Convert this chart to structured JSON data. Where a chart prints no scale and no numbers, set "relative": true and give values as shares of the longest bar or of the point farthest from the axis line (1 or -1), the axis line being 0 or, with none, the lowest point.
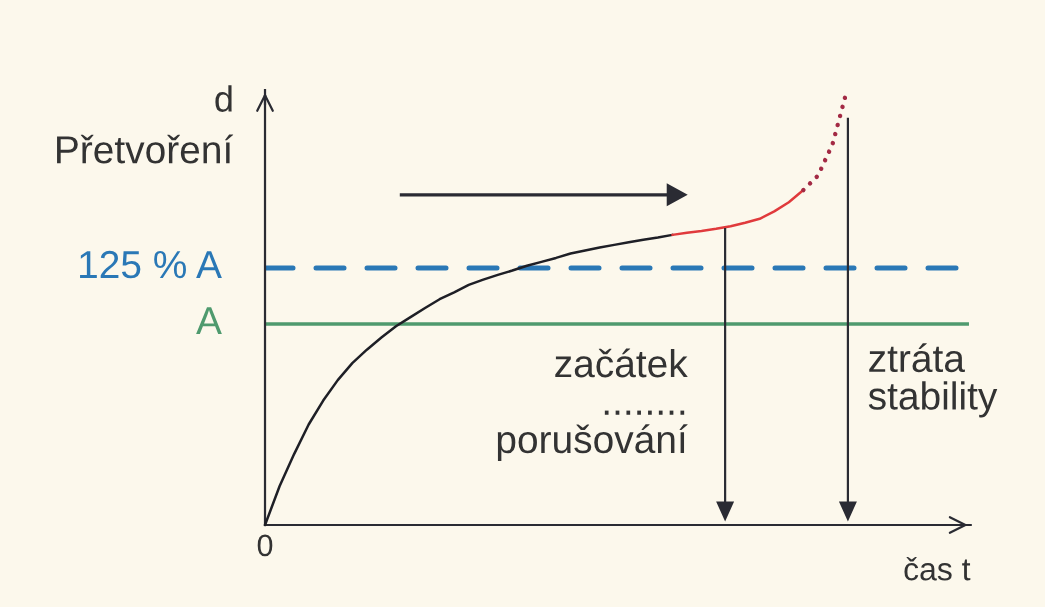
{
  "chart_data": {
    "type": "line",
    "relative": true,
    "ylabel": "Přetvoření",
    "xlabel": "čas t",
    "categories": [
      null,
      null,
      null,
      null,
      null,
      null,
      null,
      null,
      null,
      null,
      null,
      null,
      null,
      null,
      null,
      null,
      null,
      null,
      null,
      null,
      null,
      null,
      null,
      null,
      null,
      null,
      null,
      null,
      null,
      null,
      null,
      null,
      null,
      null,
      null,
      null,
      null,
      null,
      null,
      null,
      null,
      null,
      null,
      null,
      null,
      null,
      null,
      null,
      null
    ],
    "series": [
      {
        "color": "#1e1f26",
        "line_style": "solid",
        "values": [
          0,
          0.089,
          0.163,
          0.231,
          0.286,
          0.333,
          0.372,
          0.403,
          0.431,
          0.457,
          0.478,
          0.499,
          0.519,
          0.535,
          0.552,
          0.564,
          0.575,
          0.585,
          0.596,
          0.605,
          0.614,
          0.624,
          0.631,
          0.638,
          0.644,
          0.65,
          0.656,
          0.661,
          0.667,
          null,
          null,
          null,
          null,
          null,
          null,
          null,
          null,
          null,
          null,
          null,
          null,
          null,
          null,
          null,
          null,
          null,
          null,
          null,
          null
        ]
      },
      {
        "color": "#e03a3c",
        "line_style": "solid",
        "values": [
          null,
          null,
          null,
          null,
          null,
          null,
          null,
          null,
          null,
          null,
          null,
          null,
          null,
          null,
          null,
          null,
          null,
          null,
          null,
          null,
          null,
          null,
          null,
          null,
          null,
          null,
          null,
          null,
          0.667,
          0.672,
          0.676,
          0.681,
          0.687,
          0.695,
          0.704,
          0.721,
          0.742,
          0.77,
          null,
          null,
          null,
          null,
          null,
          null,
          null,
          null,
          null,
          null,
          null
        ]
      },
      {
        "color": "#a32a44",
        "line_style": "dotted",
        "values": [
          null,
          null,
          null,
          null,
          null,
          null,
          null,
          null,
          null,
          null,
          null,
          null,
          null,
          null,
          null,
          null,
          null,
          null,
          null,
          null,
          null,
          null,
          null,
          null,
          null,
          null,
          null,
          null,
          null,
          null,
          null,
          null,
          null,
          null,
          null,
          null,
          null,
          0.77,
          0.803,
          0.875,
          1,
          null,
          null,
          null,
          null,
          null,
          null,
          null,
          null
        ]
      }
    ],
    "ref_lines": [
      {
        "axis": "y",
        "value": 0.591,
        "label": "125 % A",
        "color": "#2a78b6",
        "line_style": "dashed"
      },
      {
        "axis": "y",
        "value": 0.462,
        "label": "A",
        "color": "#4f9a6e",
        "line_style": "solid"
      }
    ],
    "annotations": [
      "d",
      "0",
      "začátek\n........\nporušování",
      "ztráta\nstability"
    ],
    "marker": "none"
  }
}
